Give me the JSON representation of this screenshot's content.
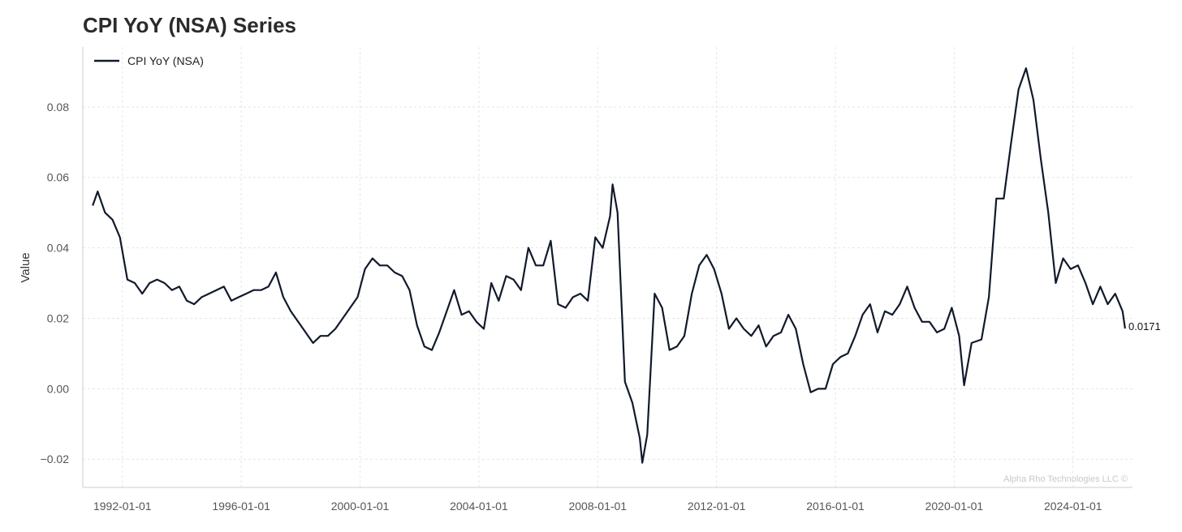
{
  "chart_data": {
    "type": "line",
    "title": "CPI YoY (NSA) Series",
    "xlabel": "",
    "ylabel": "Value",
    "xlim": [
      "1990-09-01",
      "2026-01-01"
    ],
    "ylim": [
      -0.028,
      0.097
    ],
    "grid": true,
    "legend_position": "top-left",
    "x_ticks": [
      "1992-01-01",
      "1996-01-01",
      "2000-01-01",
      "2004-01-01",
      "2008-01-01",
      "2012-01-01",
      "2016-01-01",
      "2020-01-01",
      "2024-01-01"
    ],
    "y_ticks": [
      -0.02,
      0.0,
      0.02,
      0.04,
      0.06,
      0.08
    ],
    "y_tick_labels": [
      "−0.02",
      "0.00",
      "0.02",
      "0.04",
      "0.06",
      "0.08"
    ],
    "series": [
      {
        "name": "CPI YoY (NSA)",
        "color": "#111a2b",
        "x": [
          "1991-01-01",
          "1991-03-01",
          "1991-06-01",
          "1991-09-01",
          "1991-12-01",
          "1992-03-01",
          "1992-06-01",
          "1992-09-01",
          "1992-12-01",
          "1993-03-01",
          "1993-06-01",
          "1993-09-01",
          "1993-12-01",
          "1994-03-01",
          "1994-06-01",
          "1994-09-01",
          "1994-12-01",
          "1995-03-01",
          "1995-06-01",
          "1995-09-01",
          "1995-12-01",
          "1996-03-01",
          "1996-06-01",
          "1996-09-01",
          "1996-12-01",
          "1997-03-01",
          "1997-06-01",
          "1997-09-01",
          "1997-12-01",
          "1998-03-01",
          "1998-06-01",
          "1998-09-01",
          "1998-12-01",
          "1999-03-01",
          "1999-06-01",
          "1999-09-01",
          "1999-12-01",
          "2000-03-01",
          "2000-06-01",
          "2000-09-01",
          "2000-12-01",
          "2001-03-01",
          "2001-06-01",
          "2001-09-01",
          "2001-12-01",
          "2002-03-01",
          "2002-06-01",
          "2002-09-01",
          "2002-12-01",
          "2003-03-01",
          "2003-06-01",
          "2003-09-01",
          "2003-12-01",
          "2004-03-01",
          "2004-06-01",
          "2004-09-01",
          "2004-12-01",
          "2005-03-01",
          "2005-06-01",
          "2005-09-01",
          "2005-12-01",
          "2006-03-01",
          "2006-06-01",
          "2006-09-01",
          "2006-12-01",
          "2007-03-01",
          "2007-06-01",
          "2007-09-01",
          "2007-12-01",
          "2008-03-01",
          "2008-06-01",
          "2008-07-01",
          "2008-09-01",
          "2008-12-01",
          "2009-03-01",
          "2009-06-01",
          "2009-07-01",
          "2009-09-01",
          "2009-12-01",
          "2010-03-01",
          "2010-06-01",
          "2010-09-01",
          "2010-12-01",
          "2011-03-01",
          "2011-06-01",
          "2011-09-01",
          "2011-12-01",
          "2012-03-01",
          "2012-06-01",
          "2012-09-01",
          "2012-12-01",
          "2013-03-01",
          "2013-06-01",
          "2013-09-01",
          "2013-12-01",
          "2014-03-01",
          "2014-06-01",
          "2014-09-01",
          "2014-12-01",
          "2015-03-01",
          "2015-06-01",
          "2015-09-01",
          "2015-12-01",
          "2016-03-01",
          "2016-06-01",
          "2016-09-01",
          "2016-12-01",
          "2017-03-01",
          "2017-06-01",
          "2017-09-01",
          "2017-12-01",
          "2018-03-01",
          "2018-06-01",
          "2018-09-01",
          "2018-12-01",
          "2019-03-01",
          "2019-06-01",
          "2019-09-01",
          "2019-12-01",
          "2020-03-01",
          "2020-05-01",
          "2020-08-01",
          "2020-12-01",
          "2021-03-01",
          "2021-06-01",
          "2021-09-01",
          "2021-12-01",
          "2022-03-01",
          "2022-06-01",
          "2022-09-01",
          "2022-12-01",
          "2023-03-01",
          "2023-06-01",
          "2023-09-01",
          "2023-12-01",
          "2024-03-01",
          "2024-06-01",
          "2024-09-01",
          "2024-12-01",
          "2025-03-01",
          "2025-06-01",
          "2025-09-01",
          "2025-10-01"
        ],
        "y": [
          0.052,
          0.056,
          0.05,
          0.048,
          0.043,
          0.031,
          0.03,
          0.027,
          0.03,
          0.031,
          0.03,
          0.028,
          0.029,
          0.025,
          0.024,
          0.026,
          0.027,
          0.028,
          0.029,
          0.025,
          0.026,
          0.027,
          0.028,
          0.028,
          0.029,
          0.033,
          0.026,
          0.022,
          0.019,
          0.016,
          0.013,
          0.015,
          0.015,
          0.017,
          0.02,
          0.023,
          0.026,
          0.034,
          0.037,
          0.035,
          0.035,
          0.033,
          0.032,
          0.028,
          0.018,
          0.012,
          0.011,
          0.016,
          0.022,
          0.028,
          0.021,
          0.022,
          0.019,
          0.017,
          0.03,
          0.025,
          0.032,
          0.031,
          0.028,
          0.04,
          0.035,
          0.035,
          0.042,
          0.024,
          0.023,
          0.026,
          0.027,
          0.025,
          0.043,
          0.04,
          0.049,
          0.058,
          0.05,
          0.002,
          -0.004,
          -0.014,
          -0.021,
          -0.013,
          0.027,
          0.023,
          0.011,
          0.012,
          0.015,
          0.027,
          0.035,
          0.038,
          0.034,
          0.027,
          0.017,
          0.02,
          0.017,
          0.015,
          0.018,
          0.012,
          0.015,
          0.016,
          0.021,
          0.017,
          0.007,
          -0.001,
          0.0,
          0.0,
          0.007,
          0.009,
          0.01,
          0.015,
          0.021,
          0.024,
          0.016,
          0.022,
          0.021,
          0.024,
          0.029,
          0.023,
          0.019,
          0.019,
          0.016,
          0.017,
          0.023,
          0.015,
          0.001,
          0.013,
          0.014,
          0.026,
          0.054,
          0.054,
          0.07,
          0.085,
          0.091,
          0.082,
          0.065,
          0.05,
          0.03,
          0.037,
          0.034,
          0.035,
          0.03,
          0.024,
          0.029,
          0.024,
          0.027,
          0.022,
          0.0171
        ]
      }
    ]
  },
  "end_label": "0.0171",
  "watermark": "Alpha Rho Technologies LLC ©"
}
